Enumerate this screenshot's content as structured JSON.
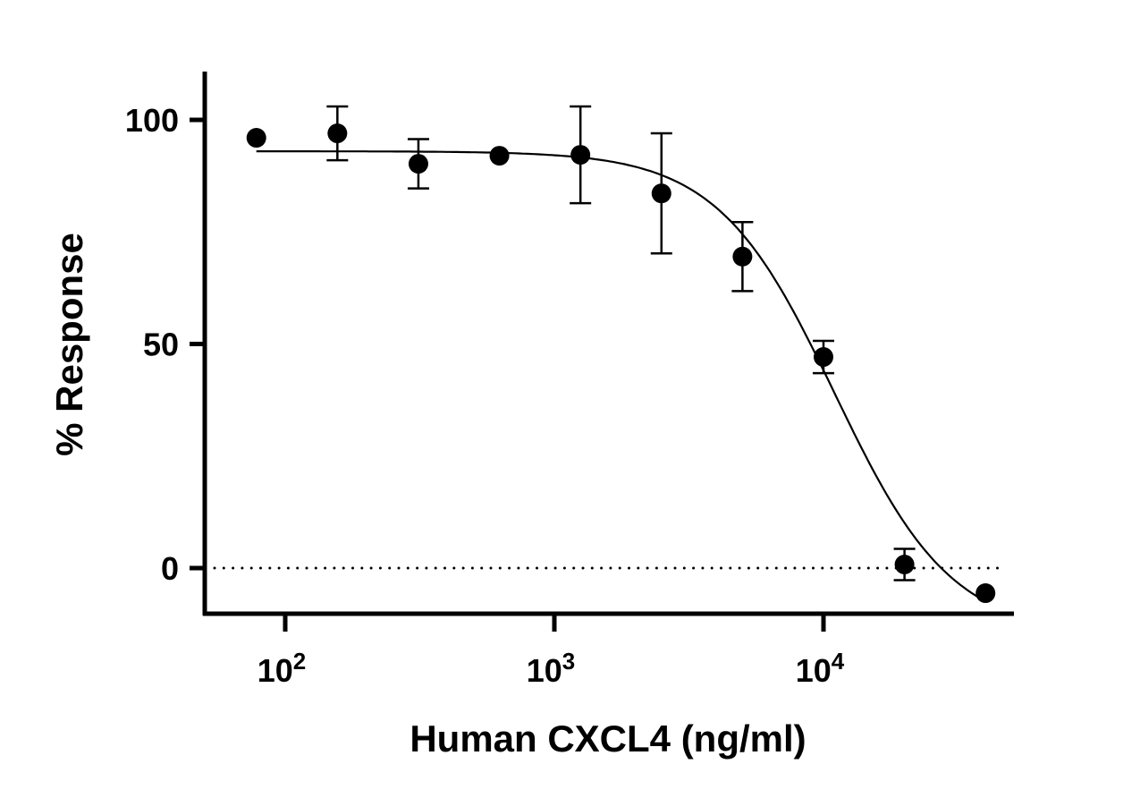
{
  "chart_data": {
    "type": "scatter",
    "title": "",
    "xlabel": "Human CXCL4 (ng/ml)",
    "ylabel": "% Response",
    "x_scale": "log",
    "xlim": [
      50,
      50000
    ],
    "ylim": [
      -10,
      110
    ],
    "grid": false,
    "x_ticks": [
      {
        "value": 100,
        "base": "10",
        "exp": "2"
      },
      {
        "value": 1000,
        "base": "10",
        "exp": "3"
      },
      {
        "value": 10000,
        "base": "10",
        "exp": "4"
      }
    ],
    "y_ticks": [
      {
        "value": 0,
        "label": "0"
      },
      {
        "value": 50,
        "label": "50"
      },
      {
        "value": 100,
        "label": "100"
      }
    ],
    "reference_line": {
      "y": 0,
      "style": "dotted"
    },
    "points": [
      {
        "x": 78.125,
        "y": 96,
        "err": 0
      },
      {
        "x": 156.25,
        "y": 97,
        "err": 6
      },
      {
        "x": 312.5,
        "y": 90.2,
        "err": 5.5
      },
      {
        "x": 625,
        "y": 92,
        "err": 0
      },
      {
        "x": 1250,
        "y": 92.2,
        "err": 10.8
      },
      {
        "x": 2500,
        "y": 83.6,
        "err": 13.4
      },
      {
        "x": 5000,
        "y": 69.5,
        "err": 7.7
      },
      {
        "x": 10000,
        "y": 47.1,
        "err": 3.6
      },
      {
        "x": 20000,
        "y": 0.8,
        "err": 3.5
      },
      {
        "x": 40000,
        "y": -5.6,
        "err": 0
      }
    ],
    "fit": {
      "model": "4PL",
      "top": 93,
      "bottom": -15,
      "ic50": 11000,
      "hill": 2,
      "x_range": [
        78.125,
        40000
      ]
    },
    "colors": {
      "marker": "#000000",
      "line": "#000000"
    }
  }
}
